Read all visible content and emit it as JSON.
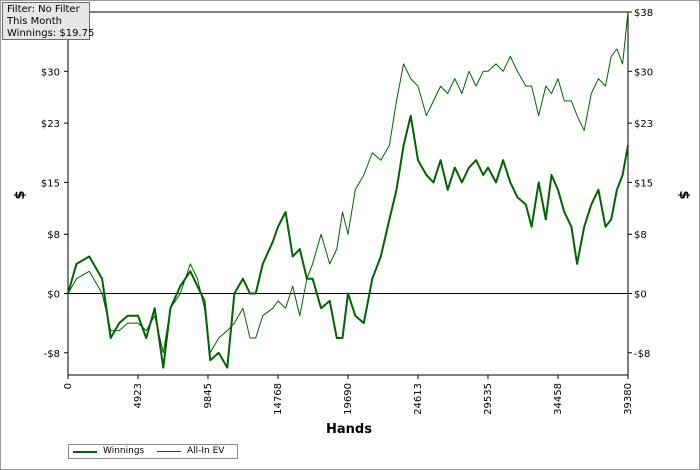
{
  "info_box": {
    "filter": "Filter: No Filter",
    "period": "This Month",
    "winnings": "Winnings: $19.75"
  },
  "chart_data": {
    "type": "line",
    "xlabel": "Hands",
    "ylabel_left": "$",
    "ylabel_right": "$",
    "xlim": [
      0,
      39380
    ],
    "ylim": [
      -11,
      38
    ],
    "x_ticks": [
      0,
      4923,
      9845,
      14768,
      19690,
      24613,
      29535,
      34458,
      39380
    ],
    "y_ticks": [
      -8,
      0,
      8,
      15,
      23,
      30,
      38
    ],
    "y_tick_labels": [
      "-$8",
      "$0",
      "$8",
      "$15",
      "$23",
      "$30",
      "$38"
    ],
    "grid": true,
    "legend_position": "bottom-left",
    "series": [
      {
        "name": "Winnings",
        "color": "#006400",
        "points": [
          [
            0,
            0
          ],
          [
            600,
            4
          ],
          [
            1500,
            5
          ],
          [
            2400,
            2
          ],
          [
            3000,
            -6
          ],
          [
            3600,
            -4
          ],
          [
            4200,
            -3
          ],
          [
            4923,
            -3
          ],
          [
            5500,
            -6
          ],
          [
            6100,
            -2
          ],
          [
            6700,
            -10
          ],
          [
            7200,
            -2
          ],
          [
            7900,
            1
          ],
          [
            8600,
            3
          ],
          [
            9100,
            1
          ],
          [
            9600,
            -1
          ],
          [
            10000,
            -9
          ],
          [
            10600,
            -8
          ],
          [
            11200,
            -10
          ],
          [
            11700,
            0
          ],
          [
            12300,
            2
          ],
          [
            12800,
            0
          ],
          [
            13200,
            0
          ],
          [
            13700,
            4
          ],
          [
            14400,
            7
          ],
          [
            14768,
            9
          ],
          [
            15300,
            11
          ],
          [
            15800,
            5
          ],
          [
            16300,
            6
          ],
          [
            16800,
            2
          ],
          [
            17200,
            2
          ],
          [
            17800,
            -2
          ],
          [
            18400,
            -1
          ],
          [
            18900,
            -6
          ],
          [
            19300,
            -6
          ],
          [
            19690,
            0
          ],
          [
            20200,
            -3
          ],
          [
            20800,
            -4
          ],
          [
            21400,
            2
          ],
          [
            22000,
            5
          ],
          [
            22600,
            10
          ],
          [
            23100,
            14
          ],
          [
            23600,
            20
          ],
          [
            24100,
            24
          ],
          [
            24613,
            18
          ],
          [
            25200,
            16
          ],
          [
            25700,
            15
          ],
          [
            26200,
            18
          ],
          [
            26700,
            14
          ],
          [
            27200,
            17
          ],
          [
            27700,
            15
          ],
          [
            28200,
            17
          ],
          [
            28700,
            18
          ],
          [
            29200,
            16
          ],
          [
            29535,
            17
          ],
          [
            30100,
            15
          ],
          [
            30600,
            18
          ],
          [
            31100,
            15
          ],
          [
            31600,
            13
          ],
          [
            32200,
            12
          ],
          [
            32600,
            9
          ],
          [
            33100,
            15
          ],
          [
            33600,
            10
          ],
          [
            34000,
            16
          ],
          [
            34458,
            14
          ],
          [
            34900,
            11
          ],
          [
            35400,
            9
          ],
          [
            35800,
            4
          ],
          [
            36300,
            9
          ],
          [
            36800,
            12
          ],
          [
            37300,
            14
          ],
          [
            37800,
            9
          ],
          [
            38200,
            10
          ],
          [
            38600,
            14
          ],
          [
            39000,
            16
          ],
          [
            39380,
            20
          ]
        ]
      },
      {
        "name": "All-In EV",
        "color": "#006400",
        "points": [
          [
            0,
            0
          ],
          [
            600,
            2
          ],
          [
            1500,
            3
          ],
          [
            2400,
            0
          ],
          [
            3000,
            -5
          ],
          [
            3600,
            -5
          ],
          [
            4200,
            -4
          ],
          [
            4923,
            -4
          ],
          [
            5500,
            -5
          ],
          [
            6100,
            -3
          ],
          [
            6700,
            -8
          ],
          [
            7200,
            -2
          ],
          [
            7900,
            0
          ],
          [
            8600,
            4
          ],
          [
            9100,
            2
          ],
          [
            9600,
            -2
          ],
          [
            10000,
            -8
          ],
          [
            10600,
            -6
          ],
          [
            11200,
            -5
          ],
          [
            11700,
            -4
          ],
          [
            12300,
            -2
          ],
          [
            12800,
            -6
          ],
          [
            13200,
            -6
          ],
          [
            13700,
            -3
          ],
          [
            14400,
            -2
          ],
          [
            14768,
            -1
          ],
          [
            15300,
            -2
          ],
          [
            15800,
            1
          ],
          [
            16300,
            -3
          ],
          [
            16800,
            2
          ],
          [
            17200,
            4
          ],
          [
            17800,
            8
          ],
          [
            18400,
            4
          ],
          [
            18900,
            6
          ],
          [
            19300,
            11
          ],
          [
            19690,
            8
          ],
          [
            20200,
            14
          ],
          [
            20800,
            16
          ],
          [
            21400,
            19
          ],
          [
            22000,
            18
          ],
          [
            22600,
            20
          ],
          [
            23100,
            26
          ],
          [
            23600,
            31
          ],
          [
            24100,
            29
          ],
          [
            24613,
            28
          ],
          [
            25200,
            24
          ],
          [
            25700,
            26
          ],
          [
            26200,
            28
          ],
          [
            26700,
            27
          ],
          [
            27200,
            29
          ],
          [
            27700,
            27
          ],
          [
            28200,
            30
          ],
          [
            28700,
            28
          ],
          [
            29200,
            30
          ],
          [
            29535,
            30
          ],
          [
            30100,
            31
          ],
          [
            30600,
            30
          ],
          [
            31100,
            32
          ],
          [
            31600,
            30
          ],
          [
            32200,
            28
          ],
          [
            32600,
            28
          ],
          [
            33100,
            24
          ],
          [
            33600,
            28
          ],
          [
            34000,
            27
          ],
          [
            34458,
            29
          ],
          [
            34900,
            26
          ],
          [
            35400,
            26
          ],
          [
            35800,
            24
          ],
          [
            36300,
            22
          ],
          [
            36800,
            27
          ],
          [
            37300,
            29
          ],
          [
            37800,
            28
          ],
          [
            38200,
            32
          ],
          [
            38600,
            33
          ],
          [
            39000,
            31
          ],
          [
            39380,
            38
          ]
        ]
      }
    ]
  }
}
